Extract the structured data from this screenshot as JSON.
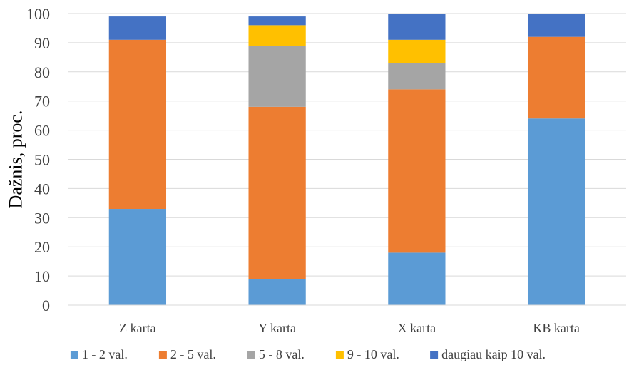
{
  "chart_data": {
    "type": "bar",
    "stacked": true,
    "categories": [
      "Z karta",
      "Y karta",
      "X karta",
      "KB karta"
    ],
    "series": [
      {
        "name": "1 - 2 val.",
        "color": "#5B9BD5",
        "values": [
          33,
          9,
          18,
          64
        ]
      },
      {
        "name": "2 - 5 val.",
        "color": "#ED7D31",
        "values": [
          58,
          59,
          56,
          28
        ]
      },
      {
        "name": "5 - 8 val.",
        "color": "#A5A5A5",
        "values": [
          0,
          21,
          9,
          0
        ]
      },
      {
        "name": "9 - 10 val.",
        "color": "#FFC000",
        "values": [
          0,
          7,
          8,
          0
        ]
      },
      {
        "name": "daugiau kaip 10 val.",
        "color": "#4472C4",
        "values": [
          8,
          3,
          9,
          8
        ]
      }
    ],
    "title": "",
    "xlabel": "",
    "ylabel": "Dažnis, proc.",
    "ylim": [
      0,
      100
    ],
    "yticks": [
      0,
      10,
      20,
      30,
      40,
      50,
      60,
      70,
      80,
      90,
      100
    ],
    "grid": true,
    "legend_position": "bottom"
  }
}
